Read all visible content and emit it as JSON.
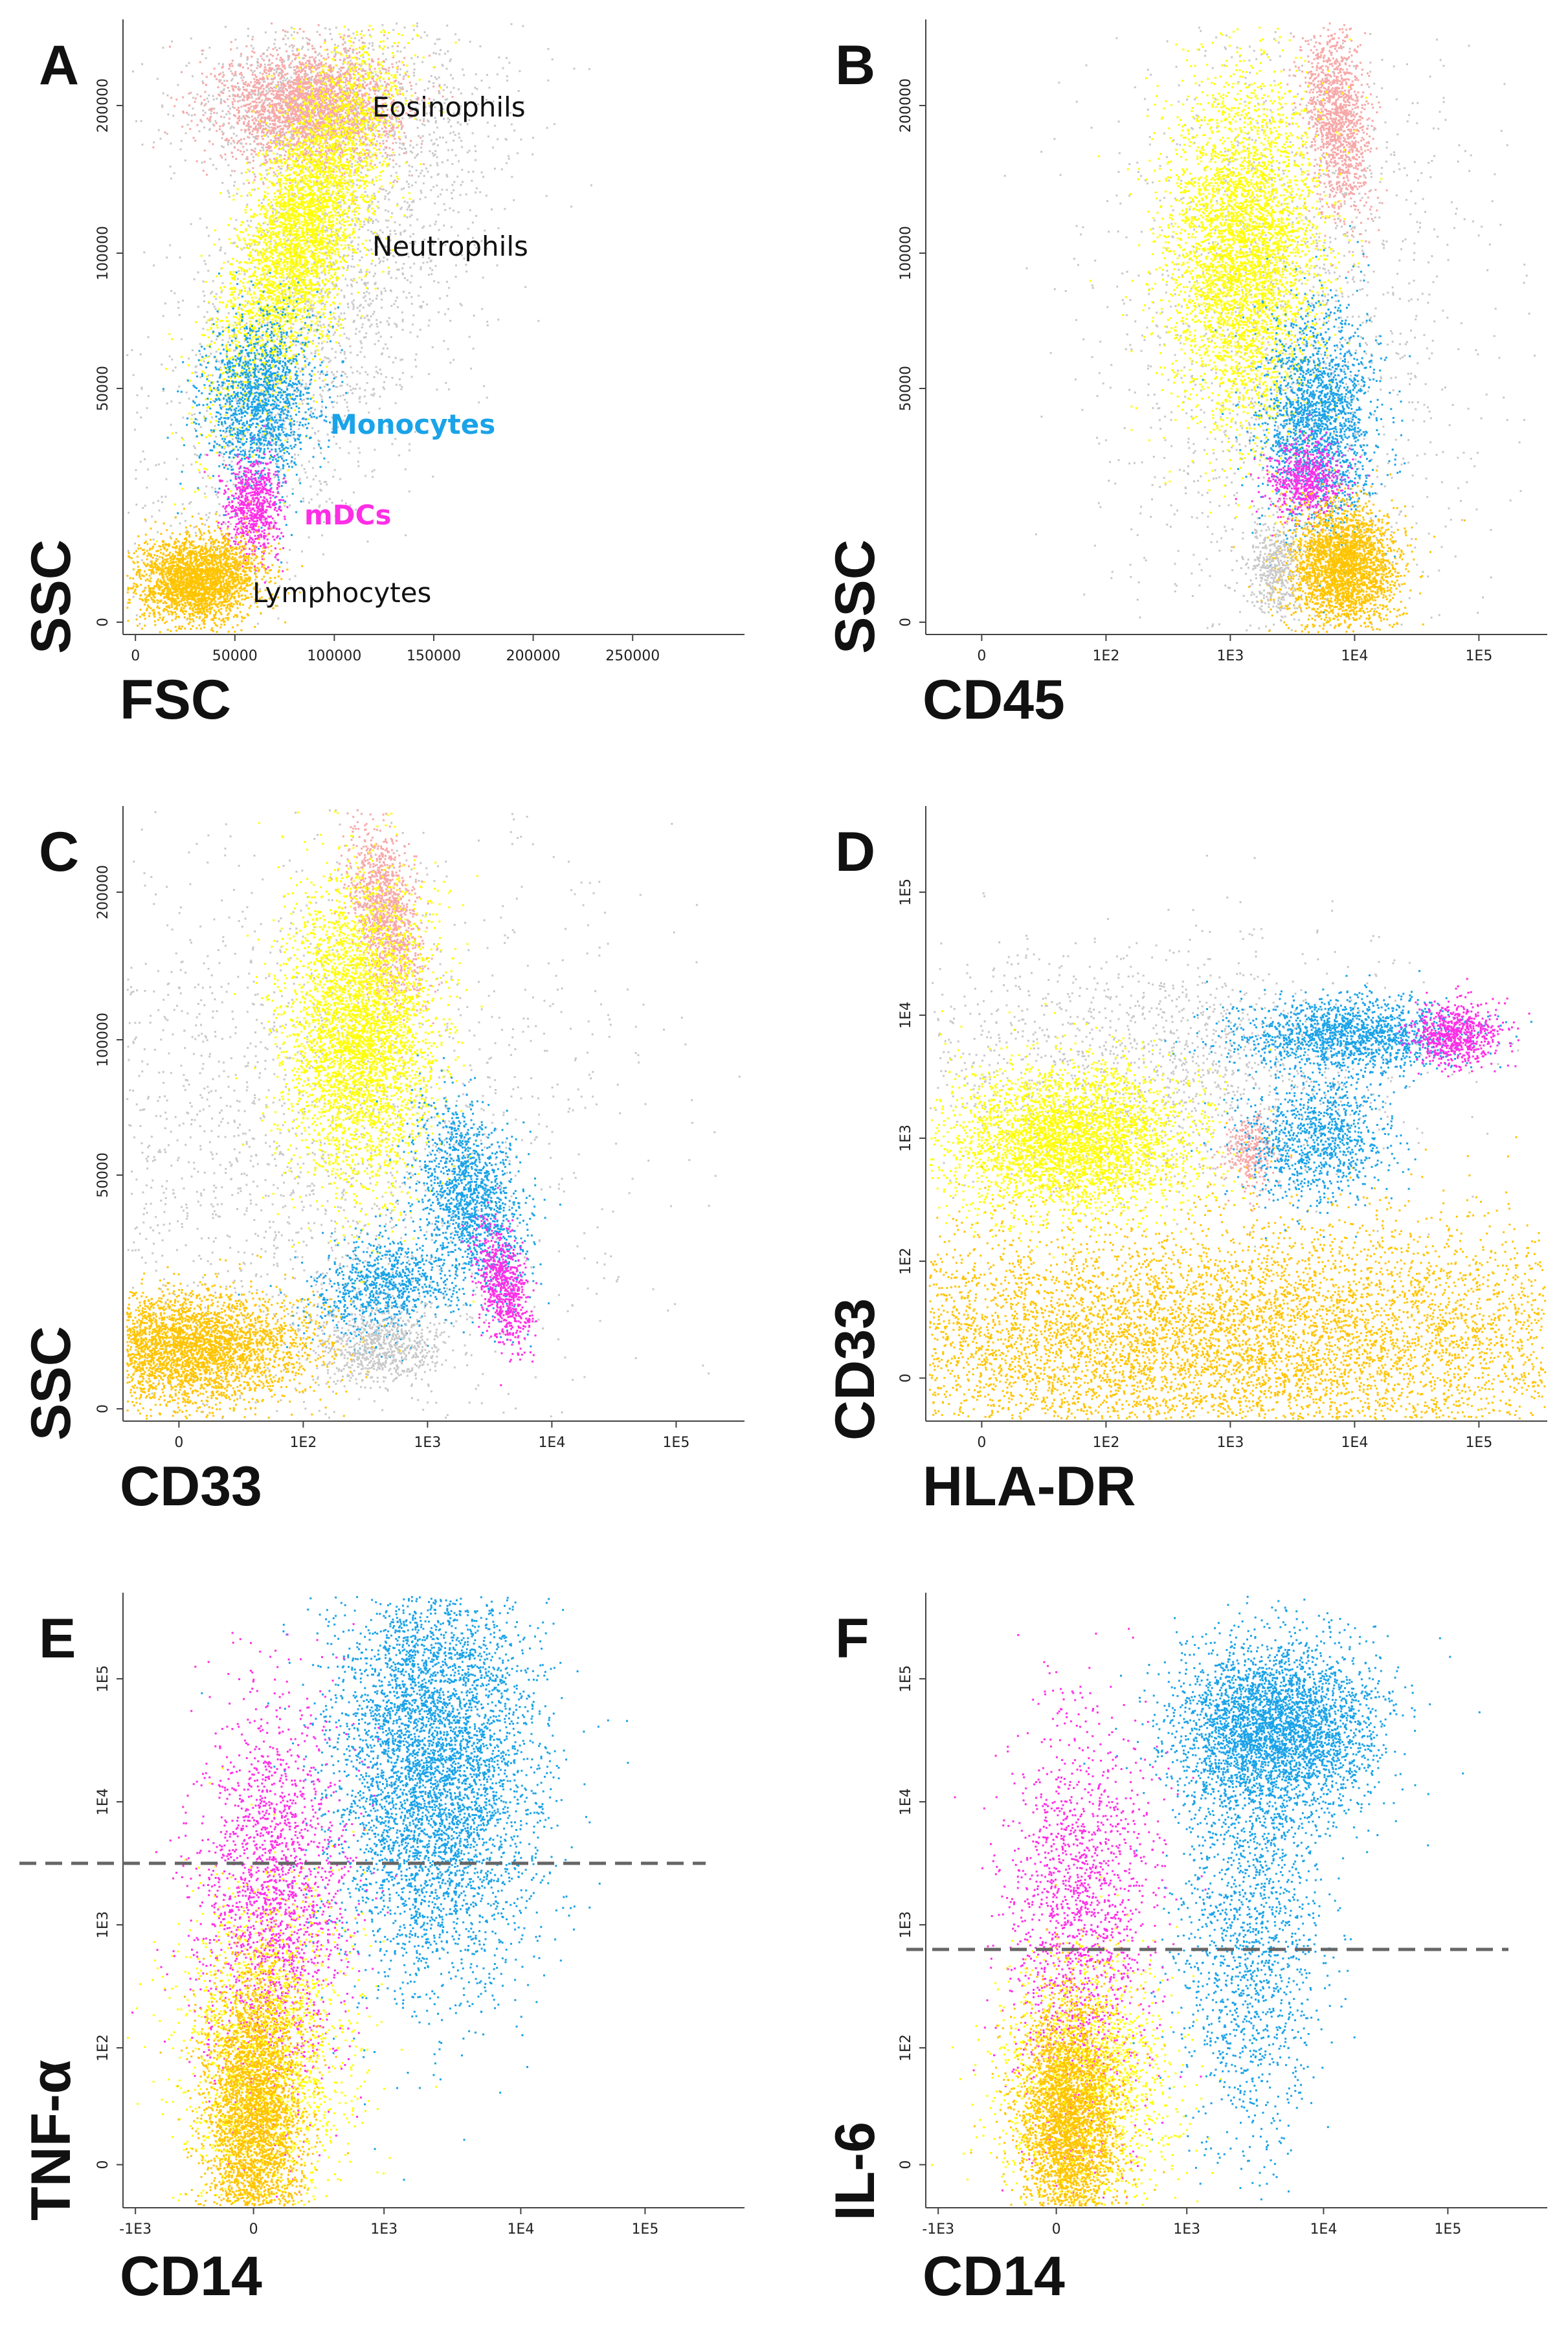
{
  "colors": {
    "eosinophils": "#f7a8a8",
    "neutrophils": "#ffff00",
    "monocytes": "#1aa3e8",
    "mdcs": "#ff2ee6",
    "lymphocytes": "#ffc400",
    "other": "#c8c8c8"
  },
  "chart_data": [
    {
      "type": "scatter",
      "panel": "A",
      "xlabel": "FSC",
      "ylabel": "SSC",
      "x_ticks": [
        "0",
        "50000",
        "100000",
        "150000",
        "200000",
        "250000"
      ],
      "y_ticks": [
        "0",
        "50000",
        "100000",
        "200000"
      ],
      "annotations": [
        {
          "text": "Eosinophils",
          "color": "#111111"
        },
        {
          "text": "Neutrophils",
          "color": "#111111"
        },
        {
          "text": "Monocytes",
          "color": "#1aa3e8"
        },
        {
          "text": "mDCs",
          "color": "#ff2ee6"
        },
        {
          "text": "Lymphocytes",
          "color": "#111111"
        }
      ],
      "populations": [
        {
          "name": "Eosinophils",
          "x_center": 78000,
          "y_center": 175000
        },
        {
          "name": "Neutrophils",
          "x_center": 75000,
          "y_center": 75000
        },
        {
          "name": "Monocytes",
          "x_center": 62000,
          "y_center": 38000
        },
        {
          "name": "mDCs",
          "x_center": 62000,
          "y_center": 22000
        },
        {
          "name": "Lymphocytes",
          "x_center": 38000,
          "y_center": 10000
        }
      ]
    },
    {
      "type": "scatter",
      "panel": "B",
      "xlabel": "CD45",
      "ylabel": "SSC",
      "x_ticks": [
        "0",
        "1E2",
        "1E3",
        "1E4",
        "1E5"
      ],
      "y_ticks": [
        "0",
        "50000",
        "100000",
        "200000"
      ],
      "populations": [
        {
          "name": "Eosinophils",
          "x_center": 7000,
          "y_center": 175000
        },
        {
          "name": "Neutrophils",
          "x_center": 1500,
          "y_center": 75000
        },
        {
          "name": "Monocytes",
          "x_center": 5000,
          "y_center": 38000
        },
        {
          "name": "mDCs",
          "x_center": 3500,
          "y_center": 24000
        },
        {
          "name": "Lymphocytes",
          "x_center": 8000,
          "y_center": 10000
        }
      ]
    },
    {
      "type": "scatter",
      "panel": "C",
      "xlabel": "CD33",
      "ylabel": "SSC",
      "x_ticks": [
        "0",
        "1E2",
        "1E3",
        "1E4",
        "1E5"
      ],
      "y_ticks": [
        "0",
        "50000",
        "100000",
        "200000"
      ],
      "populations": [
        {
          "name": "Eosinophils",
          "x_center": 800,
          "y_center": 175000
        },
        {
          "name": "Neutrophils",
          "x_center": 550,
          "y_center": 75000
        },
        {
          "name": "Monocytes",
          "x_center": 2500,
          "y_center": 35000
        },
        {
          "name": "mDCs",
          "x_center": 4000,
          "y_center": 22000
        },
        {
          "name": "Lymphocytes",
          "x_center": 10,
          "y_center": 10000
        }
      ]
    },
    {
      "type": "scatter",
      "panel": "D",
      "xlabel": "HLA-DR",
      "ylabel": "CD33",
      "x_ticks": [
        "0",
        "1E2",
        "1E3",
        "1E4",
        "1E5"
      ],
      "y_ticks": [
        "0",
        "1E2",
        "1E3",
        "1E4",
        "1E5"
      ],
      "populations": [
        {
          "name": "Eosinophils",
          "x_center": 1500,
          "y_center": 500
        },
        {
          "name": "Neutrophils",
          "x_center": 150,
          "y_center": 450
        },
        {
          "name": "Monocytes",
          "x_center": 5000,
          "y_center": 2500
        },
        {
          "name": "mDCs",
          "x_center": 40000,
          "y_center": 3500
        },
        {
          "name": "Lymphocytes",
          "x_center": 500,
          "y_center": 20
        }
      ]
    },
    {
      "type": "scatter",
      "panel": "E",
      "xlabel": "CD14",
      "ylabel": "TNF-α",
      "x_ticks": [
        "-1E3",
        "0",
        "1E3",
        "1E4",
        "1E5"
      ],
      "y_ticks": [
        "0",
        "1E2",
        "1E3",
        "1E4",
        "1E5"
      ],
      "gate_y": 600,
      "populations": [
        {
          "name": "Monocytes",
          "x_center": 2500,
          "y_center": 8000
        },
        {
          "name": "mDCs",
          "x_center": 30,
          "y_center": 400
        },
        {
          "name": "Neutrophils",
          "x_center": 200,
          "y_center": 30
        },
        {
          "name": "Lymphocytes",
          "x_center": 0,
          "y_center": 20
        }
      ]
    },
    {
      "type": "scatter",
      "panel": "F",
      "xlabel": "CD14",
      "ylabel": "IL-6",
      "x_ticks": [
        "-1E3",
        "0",
        "1E3",
        "1E4",
        "1E5"
      ],
      "y_ticks": [
        "0",
        "1E2",
        "1E3",
        "1E4",
        "1E5"
      ],
      "gate_y": 300,
      "populations": [
        {
          "name": "Monocytes",
          "x_center": 2000,
          "y_center": 9000
        },
        {
          "name": "mDCs",
          "x_center": 50,
          "y_center": 400
        },
        {
          "name": "Neutrophils",
          "x_center": 250,
          "y_center": 40
        },
        {
          "name": "Lymphocytes",
          "x_center": 0,
          "y_center": 20
        }
      ]
    }
  ]
}
